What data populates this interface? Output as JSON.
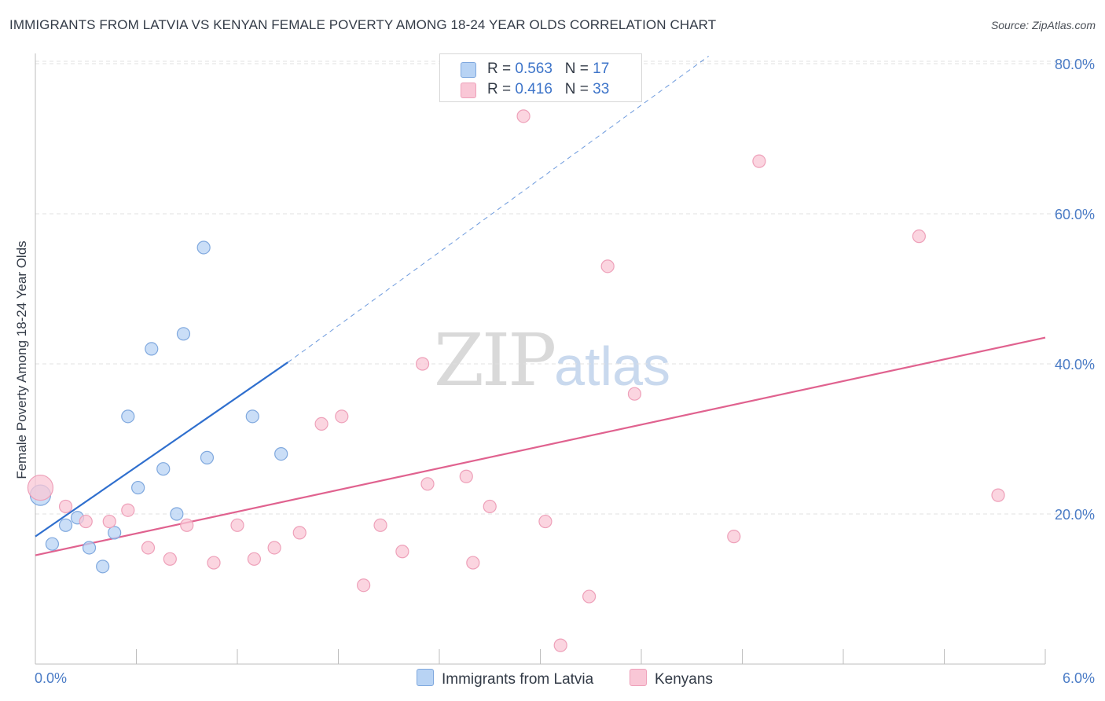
{
  "title": "IMMIGRANTS FROM LATVIA VS KENYAN FEMALE POVERTY AMONG 18-24 YEAR OLDS CORRELATION CHART",
  "source": "Source: ZipAtlas.com",
  "watermark": {
    "zip": "ZIP",
    "atlas": "atlas"
  },
  "legend": {
    "r_label": "R =",
    "n_label": "N =",
    "series": [
      {
        "r": "0.563",
        "n": "17"
      },
      {
        "r": "0.416",
        "n": "33"
      }
    ]
  },
  "bottom_legend": [
    "Immigrants from Latvia",
    "Kenyans"
  ],
  "colors": {
    "latvia_fill": "#b8d3f4",
    "latvia_stroke": "#7fa8de",
    "latvia_line": "#2f6fce",
    "kenya_fill": "#f9c7d6",
    "kenya_stroke": "#eea0b9",
    "kenya_line": "#e0628f",
    "grid": "#e0e0e0",
    "tick_text": "#4b7cc6"
  },
  "chart_data": {
    "type": "scatter",
    "title": "IMMIGRANTS FROM LATVIA VS KENYAN FEMALE POVERTY AMONG 18-24 YEAR OLDS CORRELATION CHART",
    "xlabel": "",
    "ylabel": "Female Poverty Among 18-24 Year Olds",
    "xlim": [
      0,
      6
    ],
    "ylim": [
      0,
      80
    ],
    "x_tick_labels": [
      "0.0%",
      "6.0%"
    ],
    "y_ticks": [
      20,
      40,
      60,
      80
    ],
    "y_tick_labels": [
      "20.0%",
      "40.0%",
      "60.0%",
      "80.0%"
    ],
    "grid": true,
    "series": [
      {
        "name": "Immigrants from Latvia",
        "points": [
          [
            0.03,
            22.5
          ],
          [
            0.1,
            16.0
          ],
          [
            0.18,
            18.5
          ],
          [
            0.25,
            19.5
          ],
          [
            0.32,
            15.5
          ],
          [
            0.4,
            13.0
          ],
          [
            0.47,
            17.5
          ],
          [
            0.55,
            33.0
          ],
          [
            0.61,
            23.5
          ],
          [
            0.69,
            42.0
          ],
          [
            0.76,
            26.0
          ],
          [
            0.84,
            20.0
          ],
          [
            0.88,
            44.0
          ],
          [
            1.0,
            55.5
          ],
          [
            1.02,
            27.5
          ],
          [
            1.29,
            33.0
          ],
          [
            1.46,
            28.0
          ]
        ],
        "trend": {
          "x": [
            0,
            1.5
          ],
          "y": [
            17.0,
            40.2
          ]
        },
        "trend_extended": {
          "x": [
            1.5,
            4.0
          ],
          "y": [
            40.2,
            81.0
          ]
        }
      },
      {
        "name": "Kenyans",
        "points": [
          [
            0.03,
            23.5
          ],
          [
            0.18,
            21.0
          ],
          [
            0.3,
            19.0
          ],
          [
            0.44,
            19.0
          ],
          [
            0.55,
            20.5
          ],
          [
            0.67,
            15.5
          ],
          [
            0.8,
            14.0
          ],
          [
            0.9,
            18.5
          ],
          [
            1.06,
            13.5
          ],
          [
            1.2,
            18.5
          ],
          [
            1.3,
            14.0
          ],
          [
            1.42,
            15.5
          ],
          [
            1.57,
            17.5
          ],
          [
            1.7,
            32.0
          ],
          [
            1.82,
            33.0
          ],
          [
            1.95,
            10.5
          ],
          [
            2.05,
            18.5
          ],
          [
            2.18,
            15.0
          ],
          [
            2.3,
            40.0
          ],
          [
            2.33,
            24.0
          ],
          [
            2.56,
            25.0
          ],
          [
            2.6,
            13.5
          ],
          [
            2.7,
            21.0
          ],
          [
            2.9,
            73.0
          ],
          [
            3.03,
            19.0
          ],
          [
            3.12,
            2.5
          ],
          [
            3.29,
            9.0
          ],
          [
            3.4,
            53.0
          ],
          [
            3.56,
            36.0
          ],
          [
            4.15,
            17.0
          ],
          [
            4.3,
            67.0
          ],
          [
            5.25,
            57.0
          ],
          [
            5.72,
            22.5
          ]
        ],
        "trend": {
          "x": [
            0,
            6
          ],
          "y": [
            14.5,
            43.5
          ]
        }
      }
    ]
  }
}
